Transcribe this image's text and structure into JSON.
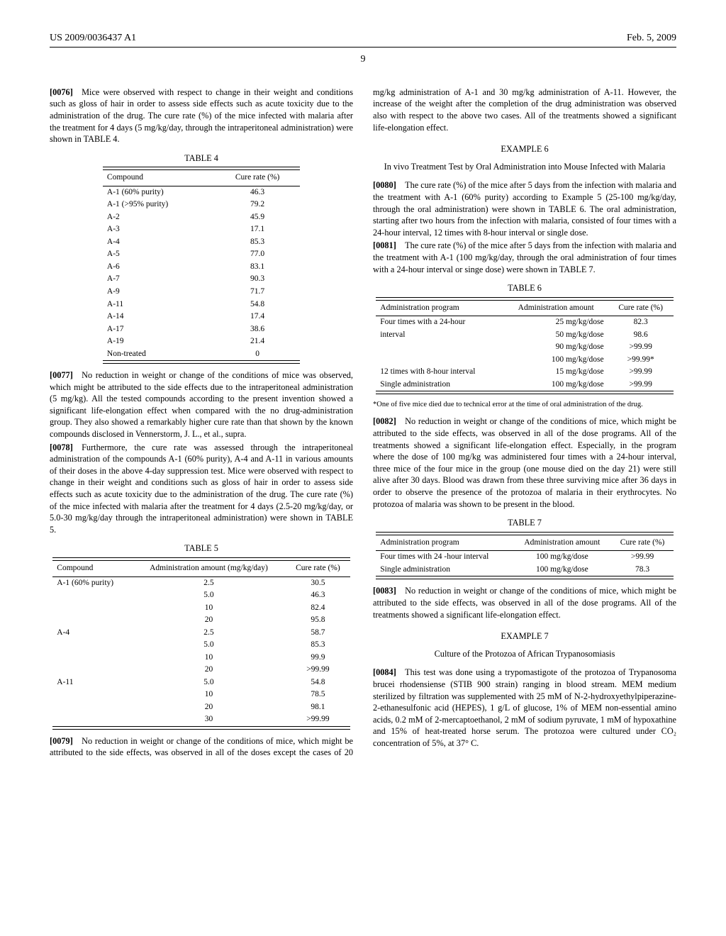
{
  "header": {
    "left": "US 2009/0036437 A1",
    "right": "Feb. 5, 2009",
    "page": "9"
  },
  "col1": {
    "p0076": "[0076] Mice were observed with respect to change in their weight and conditions such as gloss of hair in order to assess side effects such as acute toxicity due to the administration of the drug. The cure rate (%) of the mice infected with malaria after the treatment for 4 days (5 mg/kg/day, through the intraperitoneal administration) were shown in TABLE 4.",
    "table4": {
      "title": "TABLE 4",
      "headers": [
        "Compound",
        "Cure rate (%)"
      ],
      "rows": [
        [
          "A-1 (60% purity)",
          "46.3"
        ],
        [
          "A-1 (>95% purity)",
          "79.2"
        ],
        [
          "A-2",
          "45.9"
        ],
        [
          "A-3",
          "17.1"
        ],
        [
          "A-4",
          "85.3"
        ],
        [
          "A-5",
          "77.0"
        ],
        [
          "A-6",
          "83.1"
        ],
        [
          "A-7",
          "90.3"
        ],
        [
          "A-9",
          "71.7"
        ],
        [
          "A-11",
          "54.8"
        ],
        [
          "A-14",
          "17.4"
        ],
        [
          "A-17",
          "38.6"
        ],
        [
          "A-19",
          "21.4"
        ],
        [
          "Non-treated",
          "0"
        ]
      ]
    },
    "p0077": "[0077] No reduction in weight or change of the conditions of mice was observed, which might be attributed to the side effects due to the intraperitoneal administration (5 mg/kg). All the tested compounds according to the present invention showed a significant life-elongation effect when compared with the no drug-administration group. They also showed a remarkably higher cure rate than that shown by the known compounds disclosed in Vennerstorm, J. L., et al., supra.",
    "p0078": "[0078] Furthermore, the cure rate was assessed through the intraperitoneal administration of the compounds A-1 (60% purity), A-4 and A-11 in various amounts of their doses in the above 4-day suppression test. Mice were observed with respect to change in their weight and conditions such as gloss of hair in order to assess side effects such as acute toxicity due to the administration of the drug. The cure rate (%) of the mice infected with malaria after the treatment for 4 days (2.5-20 mg/kg/day, or 5.0-30 mg/kg/day through the intraperitoneal administration) were shown in TABLE 5.",
    "table5": {
      "title": "TABLE 5",
      "headers": [
        "Compound",
        "Administration amount (mg/kg/day)",
        "Cure rate (%)"
      ],
      "rows": [
        [
          "A-1 (60% purity)",
          "2.5",
          "30.5"
        ],
        [
          "",
          "5.0",
          "46.3"
        ],
        [
          "",
          "10",
          "82.4"
        ],
        [
          "",
          "20",
          "95.8"
        ],
        [
          "A-4",
          "2.5",
          "58.7"
        ],
        [
          "",
          "5.0",
          "85.3"
        ],
        [
          "",
          "10",
          "99.9"
        ],
        [
          "",
          "20",
          ">99.99"
        ],
        [
          "A-11",
          "5.0",
          "54.8"
        ],
        [
          "",
          "10",
          "78.5"
        ],
        [
          "",
          "20",
          "98.1"
        ],
        [
          "",
          "30",
          ">99.99"
        ]
      ]
    },
    "p0079": "[0079] No reduction in weight or change of the conditions of mice, which might be attributed to the side effects, was observed in all of the doses except the cases of 20 mg/kg administration of A-1 and 30 mg/kg administration of A-11. However, the increase of the weight after the completion of the drug administration was observed also with respect to the above two cases. All of the treatments showed a significant life-elongation effect."
  },
  "col2": {
    "ex6_title": "EXAMPLE 6",
    "ex6_sub": "In vivo Treatment Test by Oral Administration into Mouse Infected with Malaria",
    "p0080": "[0080] The cure rate (%) of the mice after 5 days from the infection with malaria and the treatment with A-1 (60% purity) according to Example 5 (25-100 mg/kg/day, through the oral administration) were shown in TABLE 6. The oral administration, starting after two hours from the infection with malaria, consisted of four times with a 24-hour interval, 12 times with 8-hour interval or single dose.",
    "p0081": "[0081] The cure rate (%) of the mice after 5 days from the infection with malaria and the treatment with A-1 (100 mg/kg/day, through the oral administration of four times with a 24-hour interval or singe dose) were shown in TABLE 7.",
    "table6": {
      "title": "TABLE 6",
      "headers": [
        "Administration program",
        "Administration amount",
        "Cure rate (%)"
      ],
      "rows": [
        [
          "Four times with a 24-hour",
          "25  mg/kg/dose",
          "82.3"
        ],
        [
          "interval",
          "50  mg/kg/dose",
          "98.6"
        ],
        [
          "",
          "90  mg/kg/dose",
          ">99.99"
        ],
        [
          "",
          "100  mg/kg/dose",
          ">99.99*"
        ],
        [
          "12 times with 8-hour interval",
          "15  mg/kg/dose",
          ">99.99"
        ],
        [
          "Single administration",
          "100  mg/kg/dose",
          ">99.99"
        ]
      ],
      "footnote": "*One of five mice died due to technical error at the time of oral administration of the drug."
    },
    "p0082": "[0082] No reduction in weight or change of the conditions of mice, which might be attributed to the side effects, was observed in all of the dose programs. All of the treatments showed a significant life-elongation effect. Especially, in the program where the dose of 100 mg/kg was administered four times with a 24-hour interval, three mice of the four mice in the group (one mouse died on the day 21) were still alive after 30 days. Blood was drawn from these three surviving mice after 36 days in order to observe the presence of the protozoa of malaria in their erythrocytes. No protozoa of malaria was shown to be present in the blood.",
    "table7": {
      "title": "TABLE 7",
      "headers": [
        "Administration program",
        "Administration amount",
        "Cure rate (%)"
      ],
      "rows": [
        [
          "Four times with 24 -hour interval",
          "100 mg/kg/dose",
          ">99.99"
        ],
        [
          "Single administration",
          "100 mg/kg/dose",
          "78.3"
        ]
      ]
    },
    "p0083": "[0083] No reduction in weight or change of the conditions of mice, which might be attributed to the side effects, was observed in all of the dose programs. All of the treatments showed a significant life-elongation effect.",
    "ex7_title": "EXAMPLE 7",
    "ex7_sub": "Culture of the Protozoa of African Trypanosomiasis",
    "p0084": "[0084] This test was done using a trypomastigote of the protozoa of Trypanosoma brucei rhodensiense (STIB 900 strain) ranging in blood stream. MEM medium sterilized by filtration was supplemented with 25 mM of N-2-hydroxyethylpiperazine-2-ethanesulfonic acid (HEPES), 1 g/L of glucose, 1% of MEM non-essential amino acids, 0.2 mM of 2-mercaptoethanol, 2 mM of sodium pyruvate, 1 mM of hypoxathine and 15% of heat-treated horse serum. The protozoa were cultured under CO₂ concentration of 5%, at 37° C."
  }
}
